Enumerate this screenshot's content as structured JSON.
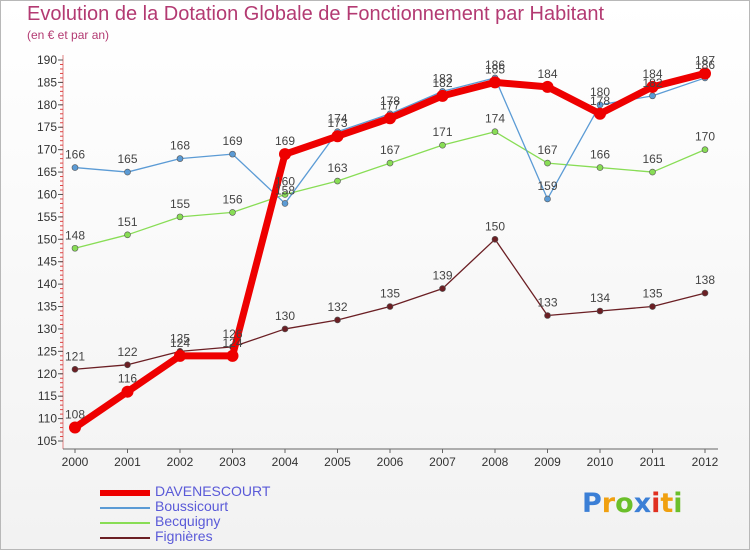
{
  "title": "Evolution de la Dotation Globale de Fonctionnement par Habitant",
  "subtitle": "(en € et par an)",
  "logo": {
    "letters": [
      {
        "ch": "P",
        "color": "#3b7fd6"
      },
      {
        "ch": "r",
        "color": "#f0a010"
      },
      {
        "ch": "o",
        "color": "#6bbf2a"
      },
      {
        "ch": "x",
        "color": "#3b7fd6"
      },
      {
        "ch": "i",
        "color": "#e03020"
      },
      {
        "ch": "t",
        "color": "#f0a010"
      },
      {
        "ch": "i",
        "color": "#6bbf2a"
      }
    ]
  },
  "chart_data": {
    "type": "line",
    "title": "Evolution de la Dotation Globale de Fonctionnement par Habitant",
    "subtitle": "(en € et par an)",
    "xlabel": "",
    "ylabel": "",
    "x": [
      "2000",
      "2001",
      "2002",
      "2003",
      "2004",
      "2005",
      "2006",
      "2007",
      "2008",
      "2009",
      "2010",
      "2011",
      "2012"
    ],
    "ylim": [
      105,
      190
    ],
    "yticks": [
      105,
      110,
      115,
      120,
      125,
      130,
      135,
      140,
      145,
      150,
      155,
      160,
      165,
      170,
      175,
      180,
      185,
      190
    ],
    "grid": false,
    "legend_position": "bottom-left",
    "series": [
      {
        "name": "Fignières",
        "color": "#6b1f24",
        "width": 1.3,
        "marker": 3,
        "values": [
          121,
          122,
          125,
          126,
          130,
          132,
          135,
          139,
          150,
          133,
          134,
          135,
          138
        ],
        "labels": [
          "121",
          "122",
          "125",
          "126",
          "130",
          "132",
          "135",
          "139",
          "150",
          "133",
          "134",
          "135",
          "138"
        ]
      },
      {
        "name": "Becquigny",
        "color": "#88dd55",
        "width": 1.3,
        "marker": 3,
        "values": [
          148,
          151,
          155,
          156,
          160,
          163,
          167,
          171,
          174,
          167,
          166,
          165,
          170
        ],
        "labels": [
          "148",
          "151",
          "155",
          "156",
          "160",
          "163",
          "167",
          "171",
          "174",
          "167",
          "166",
          "165",
          "170"
        ]
      },
      {
        "name": "Boussicourt",
        "color": "#5b9bd5",
        "width": 1.3,
        "marker": 3,
        "values": [
          166,
          165,
          168,
          169,
          158,
          174,
          178,
          183,
          186,
          159,
          180,
          182,
          186
        ],
        "labels": [
          "166",
          "165",
          "168",
          "169",
          "158",
          "174",
          "178",
          "183",
          "186",
          "159",
          "180",
          "182",
          "186"
        ]
      },
      {
        "name": "DAVENESCOURT",
        "color": "#ee0000",
        "width": 7,
        "marker": 6,
        "values": [
          108,
          116,
          124,
          124,
          169,
          173,
          177,
          182,
          185,
          184,
          178,
          184,
          187
        ],
        "labels": [
          "108",
          "116",
          "124",
          "124",
          "169",
          "173",
          "177",
          "182",
          "185",
          "184",
          "178",
          "184",
          "187"
        ]
      }
    ]
  },
  "legend": [
    {
      "name": "DAVENESCOURT",
      "color": "#ee0000",
      "thickness": 6
    },
    {
      "name": "Boussicourt",
      "color": "#5b9bd5",
      "thickness": 2
    },
    {
      "name": "Becquigny",
      "color": "#88dd55",
      "thickness": 2
    },
    {
      "name": "Fignières",
      "color": "#6b1f24",
      "thickness": 2
    }
  ]
}
